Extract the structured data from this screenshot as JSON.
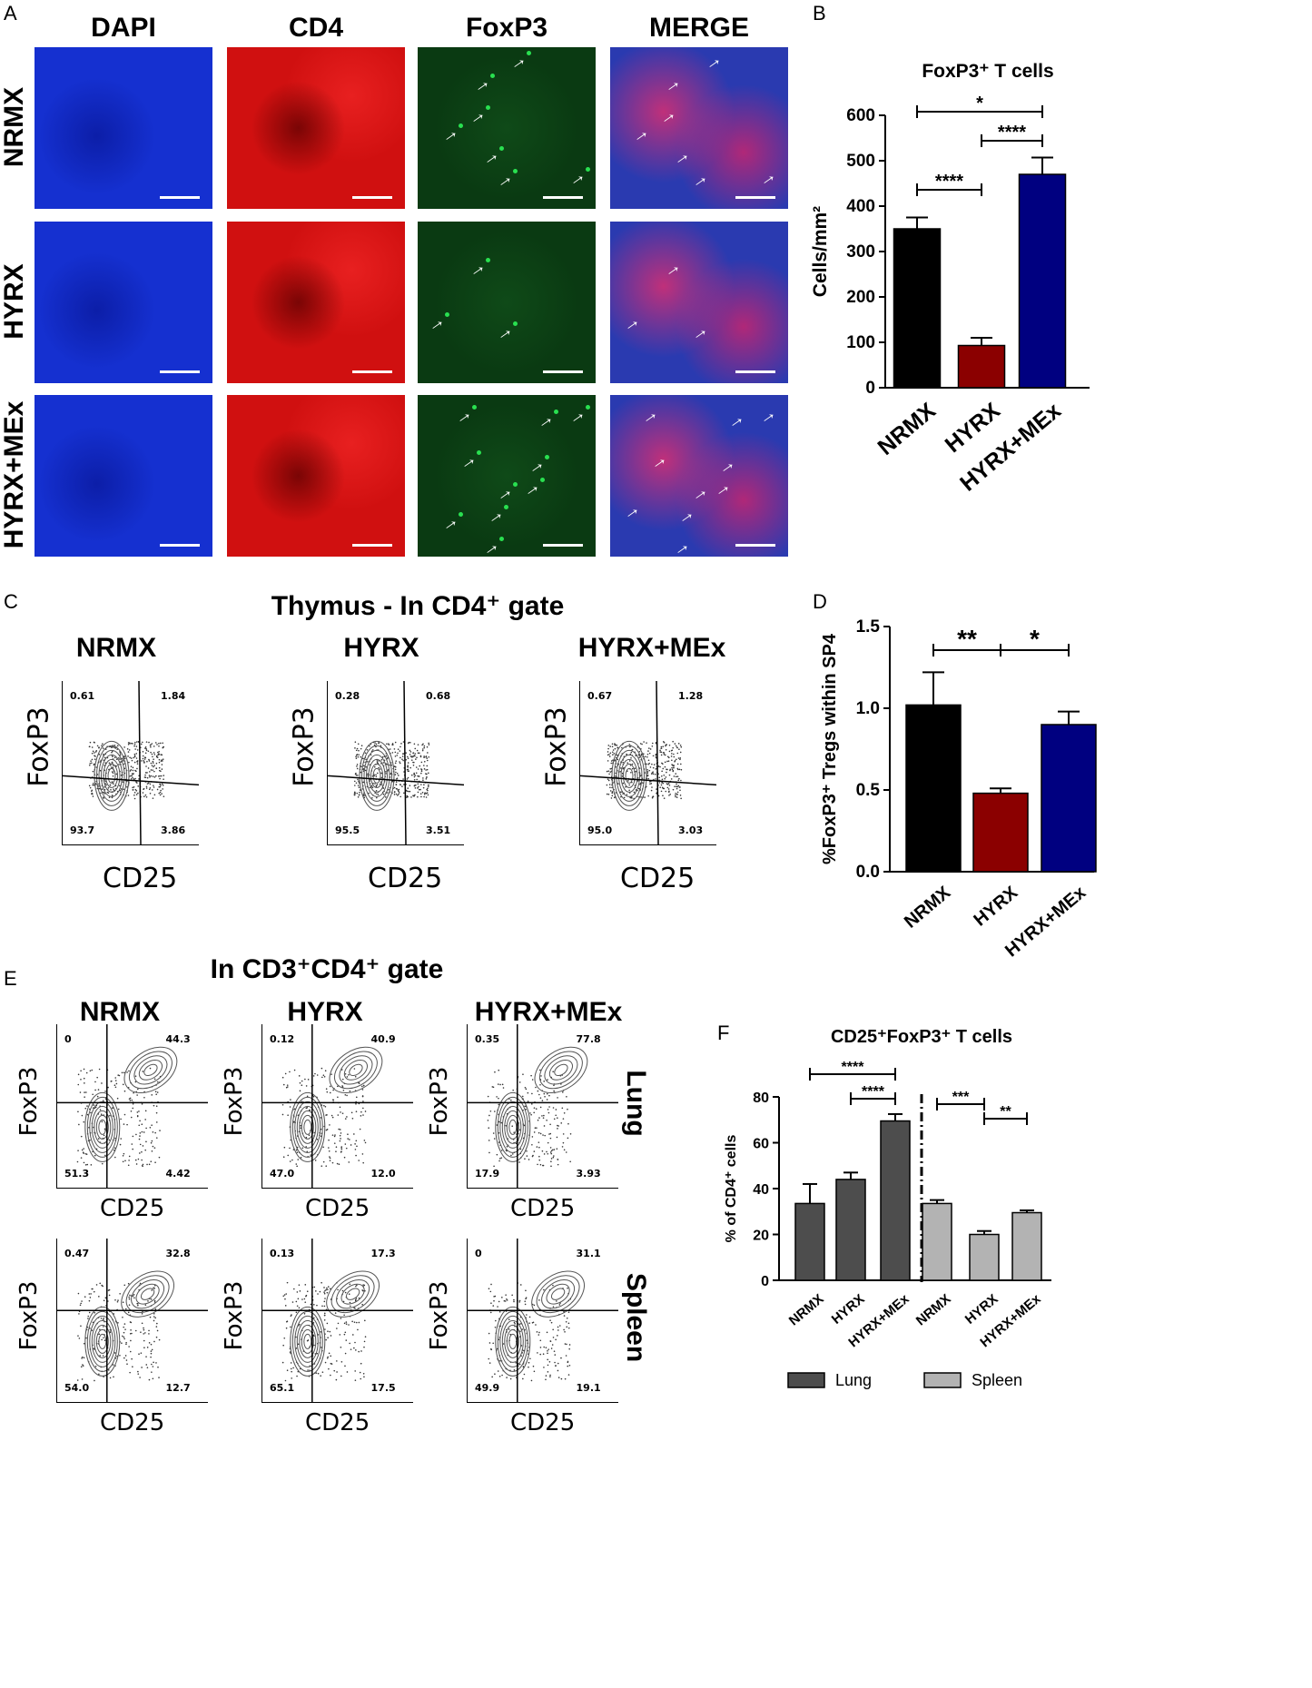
{
  "panel_labels": {
    "A": "A",
    "B": "B",
    "C": "C",
    "D": "D",
    "E": "E",
    "F": "F"
  },
  "panelA": {
    "columns": [
      "DAPI",
      "CD4",
      "FoxP3",
      "MERGE"
    ],
    "rows": [
      "NRMX",
      "HYRX",
      "HYRX+MEx"
    ],
    "colors": {
      "DAPI": "#1530d0",
      "CD4": "#d01010",
      "FoxP3": "#0a3a12",
      "MERGE": "#5a30a8"
    }
  },
  "panelC": {
    "title": "Thymus - In CD4⁺ gate",
    "plots": [
      {
        "name": "NRMX",
        "ul": "0.61",
        "ur": "1.84",
        "ll": "93.7",
        "lr": "3.86"
      },
      {
        "name": "HYRX",
        "ul": "0.28",
        "ur": "0.68",
        "ll": "95.5",
        "lr": "3.51"
      },
      {
        "name": "HYRX+MEx",
        "ul": "0.67",
        "ur": "1.28",
        "ll": "95.0",
        "lr": "3.03"
      }
    ],
    "xlabel": "CD25",
    "ylabel": "FoxP3"
  },
  "panelE": {
    "title": "In CD3⁺CD4⁺ gate",
    "columns": [
      "NRMX",
      "HYRX",
      "HYRX+MEx"
    ],
    "rows": [
      "Lung",
      "Spleen"
    ],
    "xlabel": "CD25",
    "ylabel": "FoxP3",
    "plots": [
      [
        {
          "ul": "0",
          "ur": "44.3",
          "ll": "51.3",
          "lr": "4.42"
        },
        {
          "ul": "0.12",
          "ur": "40.9",
          "ll": "47.0",
          "lr": "12.0"
        },
        {
          "ul": "0.35",
          "ur": "77.8",
          "ll": "17.9",
          "lr": "3.93"
        }
      ],
      [
        {
          "ul": "0.47",
          "ur": "32.8",
          "ll": "54.0",
          "lr": "12.7"
        },
        {
          "ul": "0.13",
          "ur": "17.3",
          "ll": "65.1",
          "lr": "17.5"
        },
        {
          "ul": "0",
          "ur": "31.1",
          "ll": "49.9",
          "lr": "19.1"
        }
      ]
    ]
  },
  "chart_data": [
    {
      "id": "B",
      "type": "bar",
      "title": "FoxP3⁺ T cells",
      "ylabel": "Cells/mm²",
      "categories": [
        "NRMX",
        "HYRX",
        "HYRX+MEx"
      ],
      "values": [
        350,
        93,
        470
      ],
      "errors": [
        25,
        17,
        37
      ],
      "colors": [
        "#000000",
        "#8b0000",
        "#000080"
      ],
      "ylim": [
        0,
        600
      ],
      "yticks": [
        "0",
        "100",
        "200",
        "300",
        "400",
        "500",
        "600"
      ],
      "significance": [
        {
          "from": 0,
          "to": 2,
          "label": "*"
        },
        {
          "from": 1,
          "to": 2,
          "label": "****"
        },
        {
          "from": 0,
          "to": 1,
          "label": "****"
        }
      ]
    },
    {
      "id": "D",
      "type": "bar",
      "title": "",
      "ylabel": "%FoxP3⁺ Tregs within SP4",
      "categories": [
        "NRMX",
        "HYRX",
        "HYRX+MEx"
      ],
      "values": [
        1.02,
        0.48,
        0.9
      ],
      "errors": [
        0.2,
        0.03,
        0.08
      ],
      "colors": [
        "#000000",
        "#8b0000",
        "#000080"
      ],
      "ylim": [
        0,
        1.5
      ],
      "yticks": [
        "0.0",
        "0.5",
        "1.0",
        "1.5"
      ],
      "significance": [
        {
          "from": 0,
          "to": 1,
          "label": "**"
        },
        {
          "from": 1,
          "to": 2,
          "label": "*"
        }
      ]
    },
    {
      "id": "F",
      "type": "bar",
      "title": "CD25⁺FoxP3⁺ T cells",
      "ylabel": "% of CD4⁺ cells",
      "categories": [
        "NRMX",
        "HYRX",
        "HYRX+MEx",
        "NRMX",
        "HYRX",
        "HYRX+MEx"
      ],
      "values": [
        33.5,
        44,
        69.5,
        33.5,
        20,
        29.5
      ],
      "errors": [
        8.5,
        3,
        3,
        1.5,
        1.5,
        1
      ],
      "groups": [
        "Lung",
        "Lung",
        "Lung",
        "Spleen",
        "Spleen",
        "Spleen"
      ],
      "colors": {
        "Lung": "#4d4d4d",
        "Spleen": "#b3b3b3"
      },
      "ylim": [
        0,
        80
      ],
      "yticks": [
        "0",
        "20",
        "40",
        "60",
        "80"
      ],
      "legend": [
        "Lung",
        "Spleen"
      ],
      "significance": [
        {
          "from": 0,
          "to": 2,
          "label": "****"
        },
        {
          "from": 1,
          "to": 2,
          "label": "****"
        },
        {
          "from": 3,
          "to": 4,
          "label": "***"
        },
        {
          "from": 4,
          "to": 5,
          "label": "**"
        }
      ]
    }
  ]
}
